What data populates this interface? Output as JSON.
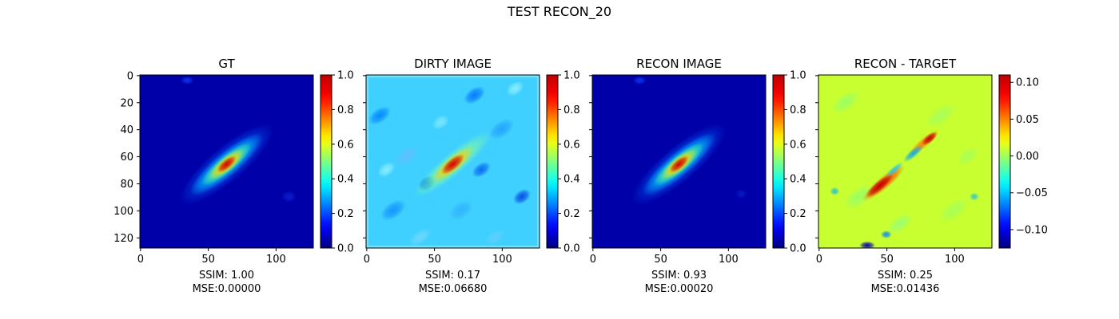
{
  "suptitle": "TEST RECON_20",
  "chart_data": [
    {
      "type": "heatmap",
      "title": "GT",
      "colormap": "jet",
      "image_size": [
        128,
        128
      ],
      "x_ticks": [
        0,
        50,
        100
      ],
      "y_ticks": [
        0,
        20,
        40,
        60,
        80,
        100,
        120
      ],
      "show_y_tick_labels": true,
      "colorbar": {
        "range": [
          0.0,
          1.0
        ],
        "ticks": [
          "0.0",
          "0.2",
          "0.4",
          "0.6",
          "0.8",
          "1.0"
        ],
        "tick_values": [
          0,
          0.2,
          0.4,
          0.6,
          0.8,
          1.0
        ]
      },
      "ssim_text": "SSIM: 1.00",
      "mse_text": "MSE:0.00000",
      "content": "gt"
    },
    {
      "type": "heatmap",
      "title": "DIRTY IMAGE",
      "colormap": "jet",
      "image_size": [
        128,
        128
      ],
      "x_ticks": [
        0,
        50,
        100
      ],
      "y_ticks": [
        0,
        20,
        40,
        60,
        80,
        100,
        120
      ],
      "show_y_tick_labels": false,
      "colorbar": {
        "range": [
          0.0,
          1.0
        ],
        "ticks": [
          "0.0",
          "0.2",
          "0.4",
          "0.6",
          "0.8",
          "1.0"
        ],
        "tick_values": [
          0,
          0.2,
          0.4,
          0.6,
          0.8,
          1.0
        ]
      },
      "ssim_text": "SSIM: 0.17",
      "mse_text": "MSE:0.06680",
      "content": "dirty"
    },
    {
      "type": "heatmap",
      "title": "RECON IMAGE",
      "colormap": "jet",
      "image_size": [
        128,
        128
      ],
      "x_ticks": [
        0,
        50,
        100
      ],
      "y_ticks": [
        0,
        20,
        40,
        60,
        80,
        100,
        120
      ],
      "show_y_tick_labels": false,
      "colorbar": {
        "range": [
          0.0,
          1.0
        ],
        "ticks": [
          "0.0",
          "0.2",
          "0.4",
          "0.6",
          "0.8",
          "1.0"
        ],
        "tick_values": [
          0,
          0.2,
          0.4,
          0.6,
          0.8,
          1.0
        ]
      },
      "ssim_text": "SSIM: 0.93",
      "mse_text": "MSE:0.00020",
      "content": "recon"
    },
    {
      "type": "heatmap",
      "title": "RECON - TARGET",
      "colormap": "jet",
      "image_size": [
        128,
        128
      ],
      "x_ticks": [
        0,
        50,
        100
      ],
      "y_ticks": [
        0,
        20,
        40,
        60,
        80,
        100,
        120
      ],
      "show_y_tick_labels": false,
      "colorbar": {
        "range": [
          -0.125,
          0.11
        ],
        "ticks": [
          "−0.10",
          "−0.05",
          "0.00",
          "0.05",
          "0.10"
        ],
        "tick_values": [
          -0.1,
          -0.05,
          0.0,
          0.05,
          0.1
        ]
      },
      "ssim_text": "SSIM: 0.25",
      "mse_text": "MSE:0.01436",
      "content": "diff"
    }
  ]
}
